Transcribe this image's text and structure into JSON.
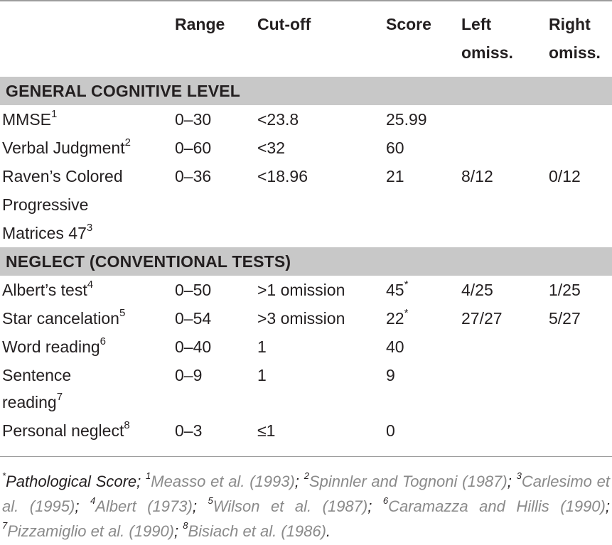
{
  "headers": {
    "range": "Range",
    "cutoff": "Cut-off",
    "score": "Score",
    "left1": "Left",
    "left2": "omiss.",
    "right1": "Right",
    "right2": "omiss."
  },
  "sections": {
    "general": "GENERAL COGNITIVE LEVEL",
    "neglect": "NEGLECT (CONVENTIONAL TESTS)"
  },
  "rows": {
    "mmse": {
      "name": "MMSE",
      "sup": "1",
      "range": "0–30",
      "cutoff": "<23.8",
      "score": "25.99"
    },
    "verbal": {
      "name": "Verbal Judgment",
      "sup": "2",
      "range": "0–60",
      "cutoff": "<32",
      "score": "60"
    },
    "raven": {
      "name1": "Raven’s Colored",
      "name2": "Progressive",
      "name3": "Matrices 47",
      "sup": "3",
      "range": "0–36",
      "cutoff": "<18.96",
      "score": "21",
      "left": "8/12",
      "right": "0/12"
    },
    "albert": {
      "name": "Albert’s test",
      "sup": "4",
      "range": "0–50",
      "cutoff": ">1 omission",
      "score": "45",
      "score_sup": "*",
      "left": "4/25",
      "right": "1/25"
    },
    "star": {
      "name": "Star cancelation",
      "sup": "5",
      "range": "0–54",
      "cutoff": ">3 omission",
      "score": "22",
      "score_sup": "*",
      "left": "27/27",
      "right": "5/27"
    },
    "word": {
      "name": "Word reading",
      "sup": "6",
      "range": "0–40",
      "cutoff": "1",
      "score": "40"
    },
    "sentence": {
      "name1": "Sentence",
      "name2": "reading",
      "sup": "7",
      "range": "0–9",
      "cutoff": "1",
      "score": "9"
    },
    "personal": {
      "name": "Personal neglect",
      "sup": "8",
      "range": "0–3",
      "cutoff": "≤1",
      "score": "0"
    }
  },
  "footnote": {
    "star": "*",
    "pathological": "Pathological Score; ",
    "r1_sup": "1",
    "r1": "Measso et al. (1993)",
    "sep1": "; ",
    "r2_sup": "2",
    "r2": "Spinnler and Tognoni (1987)",
    "sep2": "; ",
    "r3_sup": "3",
    "r3": "Carlesimo et al. (1995)",
    "sep3": "; ",
    "r4_sup": "4",
    "r4": "Albert (1973)",
    "sep4": "; ",
    "r5_sup": "5",
    "r5": "Wilson et al. (1987)",
    "sep5": "; ",
    "r6_sup": "6",
    "r6": "Caramazza and Hillis (1990)",
    "sep6": "; ",
    "r7_sup": "7",
    "r7": "Pizzamiglio et al. (1990)",
    "sep7": "; ",
    "r8_sup": "8",
    "r8": "Bisiach et al. (1986)",
    "end": "."
  }
}
